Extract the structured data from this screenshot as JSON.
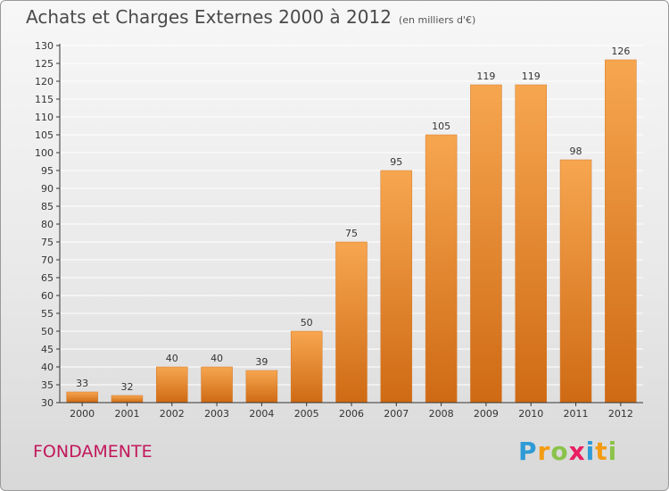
{
  "header": {
    "title": "Achats et Charges Externes 2000 à 2012",
    "unit": "(en milliers d'€)"
  },
  "footer": {
    "commune": "FONDAMENTE",
    "logo_letters": [
      {
        "char": "P",
        "color": "#2e9bd6"
      },
      {
        "char": "r",
        "color": "#f39c12"
      },
      {
        "char": "o",
        "color": "#8bc34a"
      },
      {
        "char": "x",
        "color": "#e91e63"
      },
      {
        "char": "i",
        "color": "#2e9bd6"
      },
      {
        "char": "t",
        "color": "#f39c12"
      },
      {
        "char": "i",
        "color": "#8bc34a"
      }
    ]
  },
  "chart_data": {
    "type": "bar",
    "title": "Achats et Charges Externes 2000 à 2012",
    "subtitle": "(en milliers d'€)",
    "categories": [
      "2000",
      "2001",
      "2002",
      "2003",
      "2004",
      "2005",
      "2006",
      "2007",
      "2008",
      "2009",
      "2010",
      "2011",
      "2012"
    ],
    "values": [
      33,
      32,
      40,
      40,
      39,
      50,
      75,
      95,
      105,
      119,
      119,
      98,
      126
    ],
    "data_labels": [
      "33",
      "32",
      "40",
      "40",
      "39",
      "50",
      "75",
      "95",
      "105",
      "119",
      "119",
      "98",
      "126"
    ],
    "ylim": [
      30,
      130
    ],
    "yticks": [
      30,
      35,
      40,
      45,
      50,
      55,
      60,
      65,
      70,
      75,
      80,
      85,
      90,
      95,
      100,
      105,
      110,
      115,
      120,
      125,
      130
    ],
    "grid": true,
    "legend": "none",
    "colors": {
      "bar_top": "#f7a650",
      "bar_bottom": "#cf6a14",
      "grid": "#ffffff",
      "axis": "#333333"
    }
  }
}
